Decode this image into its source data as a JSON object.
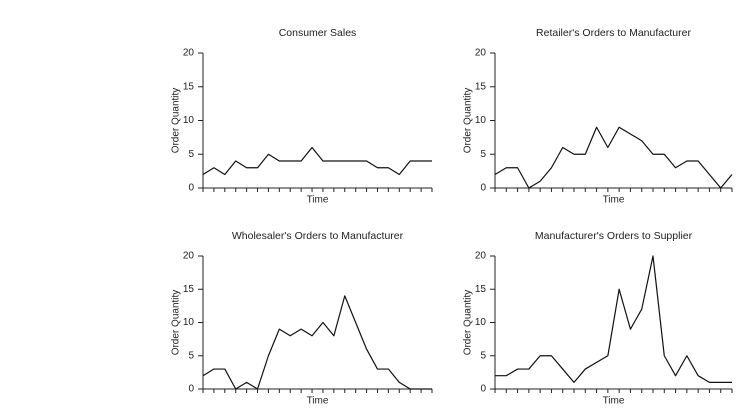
{
  "chart_data": [
    {
      "type": "line",
      "title": "Consumer Sales",
      "x_label": "Time",
      "y_label": "Order Quantity",
      "categories": [
        null,
        null,
        null,
        null,
        null,
        null,
        null,
        null,
        null,
        null,
        null,
        null,
        null,
        null,
        null,
        null,
        null,
        null,
        null,
        null,
        null,
        null
      ],
      "values": [
        2,
        3,
        2,
        4,
        3,
        3,
        5,
        4,
        4,
        4,
        6,
        4,
        4,
        4,
        4,
        4,
        3,
        3,
        2,
        4,
        4,
        4
      ],
      "color": "#111",
      "ylim": [
        0,
        20
      ],
      "yticks": [
        0,
        5,
        10,
        15,
        20
      ]
    },
    {
      "type": "line",
      "title": "Retailer's Orders to Manufacturer",
      "x_label": "Time",
      "y_label": "Order Quantity",
      "categories": [
        null,
        null,
        null,
        null,
        null,
        null,
        null,
        null,
        null,
        null,
        null,
        null,
        null,
        null,
        null,
        null,
        null,
        null,
        null,
        null,
        null,
        null
      ],
      "values": [
        2,
        3,
        3,
        0,
        1,
        3,
        6,
        5,
        5,
        9,
        6,
        9,
        8,
        7,
        5,
        5,
        3,
        4,
        4,
        2,
        0,
        2
      ],
      "color": "#111",
      "ylim": [
        0,
        20
      ],
      "yticks": [
        0,
        5,
        10,
        15,
        20
      ]
    },
    {
      "type": "line",
      "title": "Wholesaler's Orders to Manufacturer",
      "x_label": "Time",
      "y_label": "Order Quantity",
      "categories": [
        null,
        null,
        null,
        null,
        null,
        null,
        null,
        null,
        null,
        null,
        null,
        null,
        null,
        null,
        null,
        null,
        null,
        null,
        null,
        null,
        null,
        null
      ],
      "values": [
        2,
        3,
        3,
        0,
        1,
        0,
        5,
        9,
        8,
        9,
        8,
        10,
        8,
        14,
        10,
        6,
        3,
        3,
        1,
        0,
        0,
        0
      ],
      "color": "#111",
      "ylim": [
        0,
        20
      ],
      "yticks": [
        0,
        5,
        10,
        15,
        20
      ]
    },
    {
      "type": "line",
      "title": "Manufacturer's Orders to Supplier",
      "x_label": "Time",
      "y_label": "Order Quantity",
      "categories": [
        null,
        null,
        null,
        null,
        null,
        null,
        null,
        null,
        null,
        null,
        null,
        null,
        null,
        null,
        null,
        null,
        null,
        null,
        null,
        null,
        null,
        null
      ],
      "values": [
        2,
        2,
        3,
        3,
        5,
        5,
        3,
        1,
        3,
        4,
        5,
        15,
        9,
        12,
        20,
        5,
        2,
        5,
        2,
        1,
        1,
        1
      ],
      "color": "#111",
      "ylim": [
        0,
        20
      ],
      "yticks": [
        0,
        5,
        10,
        15,
        20
      ]
    }
  ]
}
